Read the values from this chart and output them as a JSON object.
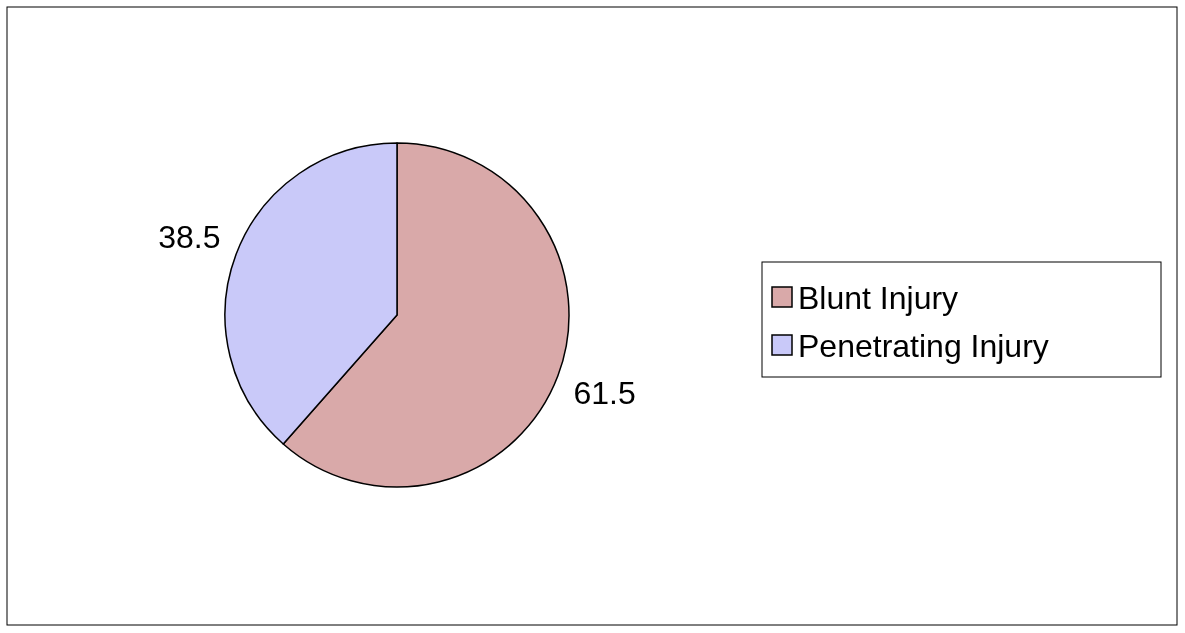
{
  "chart_data": {
    "type": "pie",
    "categories": [
      "Blunt Injury",
      "Penetrating Injury"
    ],
    "values": [
      61.5,
      38.5
    ],
    "colors": [
      "#d9a9a9",
      "#c9c9f9"
    ],
    "data_labels": true,
    "legend": "right"
  }
}
